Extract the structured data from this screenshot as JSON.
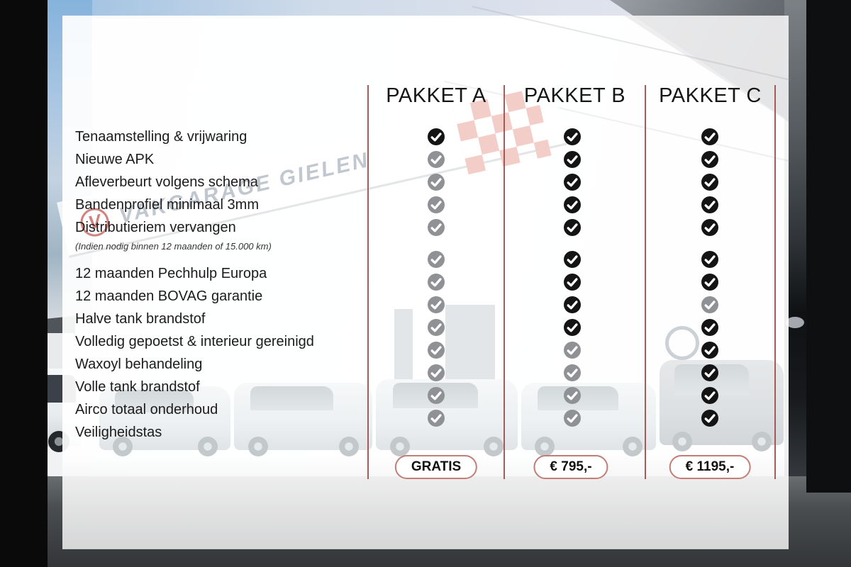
{
  "packages": [
    {
      "id": "a",
      "label": "PAKKET A",
      "price": "GRATIS",
      "includes": [
        true,
        false,
        false,
        false,
        false,
        false,
        false,
        false,
        false,
        false,
        false,
        false,
        false
      ]
    },
    {
      "id": "b",
      "label": "PAKKET B",
      "price": "€ 795,-",
      "includes": [
        true,
        true,
        true,
        true,
        true,
        true,
        true,
        true,
        true,
        false,
        false,
        false,
        false
      ]
    },
    {
      "id": "c",
      "label": "PAKKET C",
      "price": "€ 1195,-",
      "includes": [
        true,
        true,
        true,
        true,
        true,
        true,
        true,
        false,
        true,
        true,
        true,
        true,
        true
      ]
    }
  ],
  "features": [
    {
      "label": "Tenaamstelling & vrijwaring"
    },
    {
      "label": "Nieuwe APK"
    },
    {
      "label": "Afleverbeurt volgens schema"
    },
    {
      "label": "Bandenprofiel minimaal 3mm"
    },
    {
      "label": "Distributieriem vervangen",
      "note": "(Indien nodig binnen 12 maanden of 15.000 km)"
    },
    {
      "label": "12 maanden Pechhulp Europa"
    },
    {
      "label": "12 maanden BOVAG garantie"
    },
    {
      "label": "Halve tank brandstof"
    },
    {
      "label": "Volledig gepoetst & interieur gereinigd"
    },
    {
      "label": "Waxoyl behandeling"
    },
    {
      "label": "Volle tank brandstof"
    },
    {
      "label": "Airco totaal onderhoud"
    },
    {
      "label": "Veiligheidstas"
    }
  ],
  "background": {
    "building_sign": "VAKGARAGE GIELEN",
    "logo_letter": "V"
  },
  "icons": {
    "included": "check-circle-icon",
    "excluded": "check-circle-icon"
  },
  "colors": {
    "divider": "#9d4f4c",
    "pill_border": "#c27d76",
    "check_included": "#141414",
    "check_excluded": "#8f9194",
    "text": "#1b1b1b"
  }
}
